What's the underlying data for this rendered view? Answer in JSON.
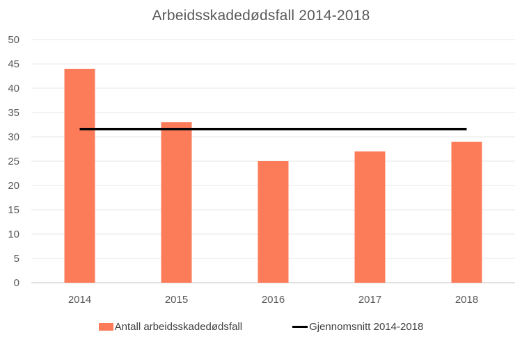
{
  "title": "Arbeidsskadedødsfall 2014-2018",
  "chart_data": {
    "type": "bar",
    "title": "Arbeidsskadedødsfall 2014-2018",
    "categories": [
      "2014",
      "2015",
      "2016",
      "2017",
      "2018"
    ],
    "series": [
      {
        "name": "Antall arbeidsskadedødsfall",
        "type": "bar",
        "values": [
          44,
          33,
          25,
          27,
          29
        ]
      },
      {
        "name": "Gjennomsnitt 2014-2018",
        "type": "line",
        "average_value": 31.6
      }
    ],
    "xlabel": "",
    "ylabel": "",
    "ylim": [
      0,
      50
    ],
    "ytick_step": 5,
    "ytick_labels": [
      "0",
      "5",
      "10",
      "15",
      "20",
      "25",
      "30",
      "35",
      "40",
      "45",
      "50"
    ],
    "grid": "horizontal",
    "legend_position": "bottom"
  },
  "legend": {
    "bar_label": "Antall arbeidsskadedødsfall",
    "line_label": "Gjennomsnitt 2014-2018"
  },
  "colors": {
    "bar": "#FC7C5A",
    "average_line": "#000000",
    "title_text": "#595959",
    "axis_text": "#595959",
    "legend_text": "#404040",
    "gridline": "#E7E7E7",
    "axis_line": "#D9D9D9",
    "background": "#FFFFFF"
  }
}
